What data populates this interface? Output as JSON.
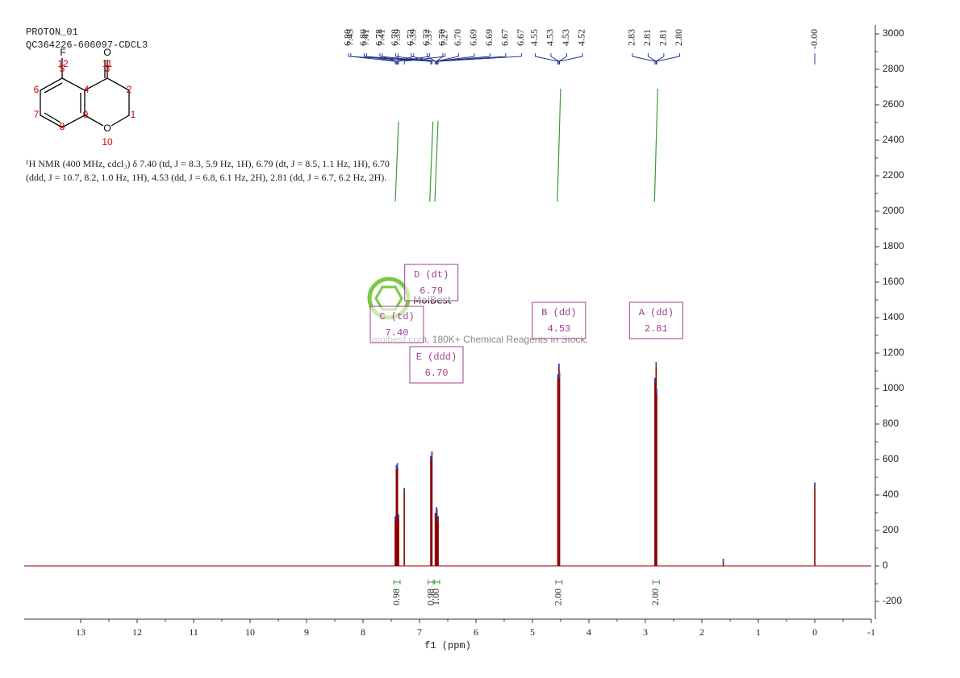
{
  "chart_data": {
    "type": "nmr",
    "title": "PROTON_01",
    "subtitle": "QC364226-606097-CDCL3",
    "description": [
      "¹H NMR (400 MHz, cdcl₃) δ 7.40 (td, J = 8.3, 5.9 Hz, 1H), 6.79 (dt, J = 8.5, 1.1 Hz, 1H), 6.70",
      "(ddd, J = 10.7, 8.2, 1.0 Hz, 1H), 4.53 (dd, J = 6.8, 6.1 Hz, 2H), 2.81 (dd, J = 6.7, 6.2 Hz, 2H)."
    ],
    "structure": {
      "atoms": [
        "F",
        "O",
        "O"
      ],
      "numbers": [
        "12",
        "11",
        "5",
        "3",
        "2",
        "6",
        "4",
        "7",
        "9",
        "1",
        "8",
        "10"
      ]
    },
    "watermark": {
      "brand": "MolBest",
      "text": "molbest.com, 180K+ Chemical Reagents In Stock."
    },
    "xlabel": "f1 (ppm)",
    "xlim": [
      14,
      -1
    ],
    "xticks": [
      13,
      12,
      11,
      10,
      9,
      8,
      7,
      6,
      5,
      4,
      3,
      2,
      1,
      0,
      -1
    ],
    "ylim": [
      -300,
      3050
    ],
    "yticks": [
      -200,
      0,
      200,
      400,
      600,
      800,
      1000,
      1200,
      1400,
      1600,
      1800,
      2000,
      2200,
      2400,
      2600,
      2800,
      3000
    ],
    "color": "#8b0000",
    "x": [
      7.43,
      7.41,
      7.39,
      7.37,
      7.27,
      6.8,
      6.78,
      6.72,
      6.7,
      6.69,
      6.67,
      4.55,
      4.53,
      4.52,
      2.83,
      2.81,
      2.8,
      1.62,
      0.0
    ],
    "values": [
      280,
      570,
      580,
      290,
      440,
      620,
      645,
      300,
      330,
      320,
      280,
      1080,
      1140,
      1090,
      1060,
      1150,
      1000,
      40,
      470
    ],
    "peak_labels": [
      {
        "value": 7.43,
        "label": "7.43"
      },
      {
        "value": 7.41,
        "label": "7.41"
      },
      {
        "value": 7.41,
        "label": "7.41"
      },
      {
        "value": 7.39,
        "label": "7.39"
      },
      {
        "value": 7.39,
        "label": "7.39"
      },
      {
        "value": 7.37,
        "label": "7.37"
      },
      {
        "value": 7.27,
        "label": "7.27"
      },
      {
        "value": 6.8,
        "label": "6.80"
      },
      {
        "value": 6.8,
        "label": "6.80"
      },
      {
        "value": 6.78,
        "label": "6.78"
      },
      {
        "value": 6.78,
        "label": "6.78"
      },
      {
        "value": 6.72,
        "label": "6.72"
      },
      {
        "value": 6.72,
        "label": "6.72"
      },
      {
        "value": 6.7,
        "label": "6.70"
      },
      {
        "value": 6.7,
        "label": "6.70"
      },
      {
        "value": 6.69,
        "label": "6.69"
      },
      {
        "value": 6.69,
        "label": "6.69"
      },
      {
        "value": 6.67,
        "label": "6.67"
      },
      {
        "value": 6.67,
        "label": "6.67"
      },
      {
        "value": 4.55,
        "label": "4.55"
      },
      {
        "value": 4.53,
        "label": "4.53"
      },
      {
        "value": 4.53,
        "label": "4.53"
      },
      {
        "value": 4.52,
        "label": "4.52"
      },
      {
        "value": 2.83,
        "label": "2.83"
      },
      {
        "value": 2.81,
        "label": "2.81"
      },
      {
        "value": 2.81,
        "label": "2.81"
      },
      {
        "value": 2.8,
        "label": "2.80"
      },
      {
        "value": 0.0,
        "label": "-0.00"
      }
    ],
    "multiplets": [
      {
        "name": "C (td)",
        "shift": 7.4,
        "shift_label": "7.40",
        "integral": 0.98,
        "integral_label": "0.98"
      },
      {
        "name": "D (dt)",
        "shift": 6.79,
        "shift_label": "6.79",
        "integral": 0.98,
        "integral_label": "0.98"
      },
      {
        "name": "E (ddd)",
        "shift": 6.7,
        "shift_label": "6.70",
        "integral": 1.0,
        "integral_label": "1.00"
      },
      {
        "name": "B (dd)",
        "shift": 4.53,
        "shift_label": "4.53",
        "integral": 2.0,
        "integral_label": "2.00"
      },
      {
        "name": "A (dd)",
        "shift": 2.81,
        "shift_label": "2.81",
        "integral": 2.0,
        "integral_label": "2.00"
      }
    ]
  }
}
